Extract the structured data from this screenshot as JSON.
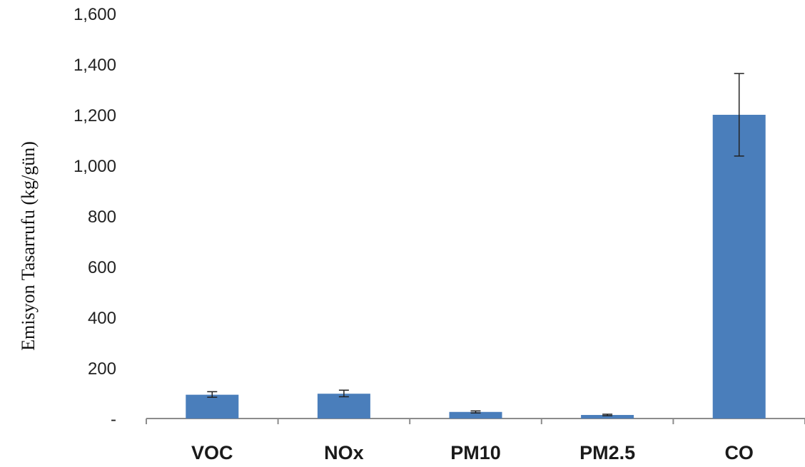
{
  "chart_data": {
    "type": "bar",
    "title": "",
    "xlabel": "",
    "ylabel": "Emisyon Tasarrufu (kg/gün)",
    "categories": [
      "VOC",
      "NOx",
      "PM10",
      "PM2.5",
      "CO"
    ],
    "values": [
      94,
      98,
      26,
      14,
      1200
    ],
    "error_low": [
      84,
      86,
      22,
      11,
      1037
    ],
    "error_high": [
      106,
      112,
      30,
      17,
      1363
    ],
    "ylim": [
      0,
      1600
    ],
    "y_ticks": [
      0,
      200,
      400,
      600,
      800,
      1000,
      1200,
      1400,
      1600
    ],
    "y_tick_labels": [
      "-",
      "200",
      "400",
      "600",
      "800",
      "1,000",
      "1,200",
      "1,400",
      "1,600"
    ],
    "grid": false,
    "bar_color": "#4a7ebb",
    "error_color": "#222222"
  }
}
